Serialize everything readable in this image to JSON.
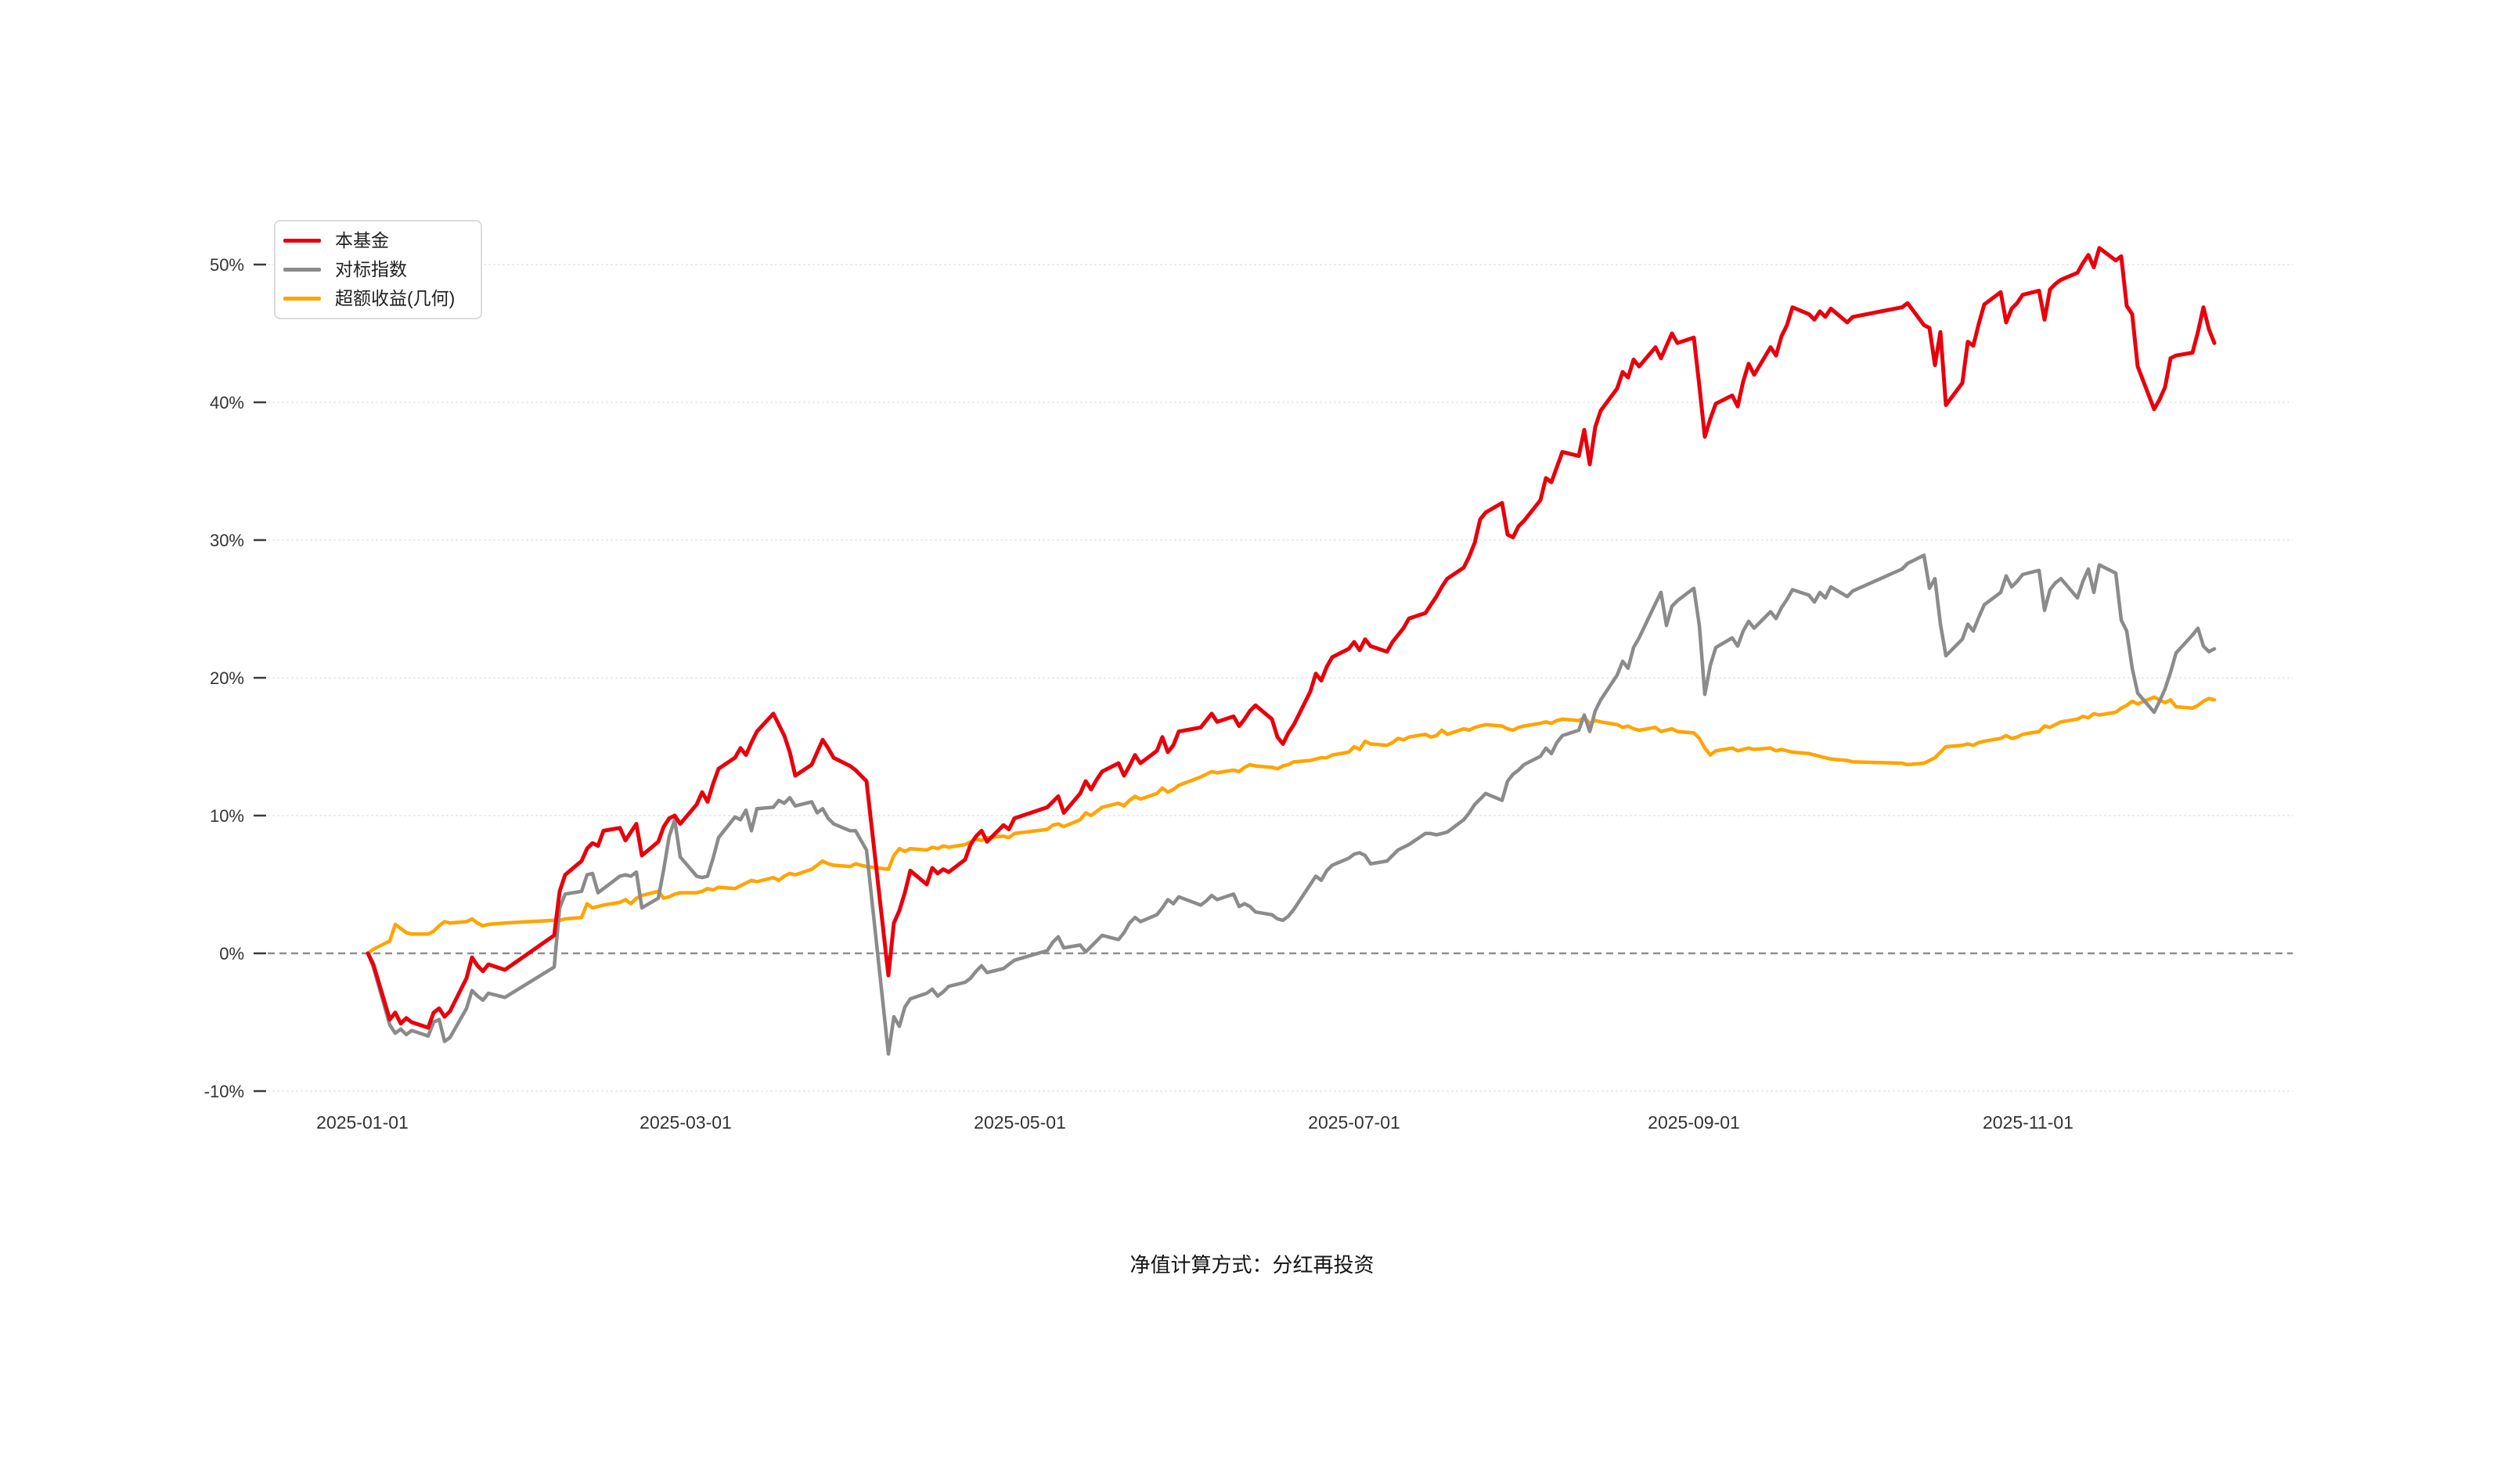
{
  "footer": {
    "note": "净值计算方式：分红再投资"
  },
  "legend": {
    "items": [
      {
        "label": "本基金",
        "color": "#e8000c"
      },
      {
        "label": "对标指数",
        "color": "#8b8b8b"
      },
      {
        "label": "超额收益(几何)",
        "color": "#ffa400"
      }
    ]
  },
  "chart_data": {
    "type": "line",
    "title": "",
    "grid": true,
    "legend_position": "top-left",
    "y_axis": {
      "ticks": [
        "50%",
        "40%",
        "30%",
        "20%",
        "10%",
        "0%",
        "-10%"
      ],
      "values": [
        50,
        40,
        30,
        20,
        10,
        0,
        -10
      ],
      "range": [
        -10,
        50
      ],
      "zero_line_dashed": true
    },
    "x_axis": {
      "ticks": [
        "2025-01-01",
        "2025-03-01",
        "2025-05-01",
        "2025-07-01",
        "2025-09-01",
        "2025-11-01"
      ]
    },
    "x": [
      "2025-01-02",
      "2025-01-03",
      "2025-01-06",
      "2025-01-07",
      "2025-01-08",
      "2025-01-09",
      "2025-01-10",
      "2025-01-13",
      "2025-01-14",
      "2025-01-15",
      "2025-01-16",
      "2025-01-17",
      "2025-01-20",
      "2025-01-21",
      "2025-01-22",
      "2025-01-23",
      "2025-01-24",
      "2025-01-27",
      "2025-02-05",
      "2025-02-06",
      "2025-02-07",
      "2025-02-10",
      "2025-02-11",
      "2025-02-12",
      "2025-02-13",
      "2025-02-14",
      "2025-02-17",
      "2025-02-18",
      "2025-02-19",
      "2025-02-20",
      "2025-02-21",
      "2025-02-24",
      "2025-02-25",
      "2025-02-26",
      "2025-02-27",
      "2025-02-28",
      "2025-03-03",
      "2025-03-04",
      "2025-03-05",
      "2025-03-06",
      "2025-03-07",
      "2025-03-10",
      "2025-03-11",
      "2025-03-12",
      "2025-03-13",
      "2025-03-14",
      "2025-03-17",
      "2025-03-18",
      "2025-03-19",
      "2025-03-20",
      "2025-03-21",
      "2025-03-24",
      "2025-03-25",
      "2025-03-26",
      "2025-03-27",
      "2025-03-28",
      "2025-03-31",
      "2025-04-01",
      "2025-04-02",
      "2025-04-03",
      "2025-04-07",
      "2025-04-08",
      "2025-04-09",
      "2025-04-10",
      "2025-04-11",
      "2025-04-14",
      "2025-04-15",
      "2025-04-16",
      "2025-04-17",
      "2025-04-18",
      "2025-04-21",
      "2025-04-22",
      "2025-04-23",
      "2025-04-24",
      "2025-04-25",
      "2025-04-28",
      "2025-04-29",
      "2025-04-30",
      "2025-05-06",
      "2025-05-07",
      "2025-05-08",
      "2025-05-09",
      "2025-05-12",
      "2025-05-13",
      "2025-05-14",
      "2025-05-15",
      "2025-05-16",
      "2025-05-19",
      "2025-05-20",
      "2025-05-21",
      "2025-05-22",
      "2025-05-23",
      "2025-05-26",
      "2025-05-27",
      "2025-05-28",
      "2025-05-29",
      "2025-05-30",
      "2025-06-03",
      "2025-06-04",
      "2025-06-05",
      "2025-06-06",
      "2025-06-09",
      "2025-06-10",
      "2025-06-11",
      "2025-06-12",
      "2025-06-13",
      "2025-06-16",
      "2025-06-17",
      "2025-06-18",
      "2025-06-19",
      "2025-06-20",
      "2025-06-23",
      "2025-06-24",
      "2025-06-25",
      "2025-06-26",
      "2025-06-27",
      "2025-06-30",
      "2025-07-01",
      "2025-07-02",
      "2025-07-03",
      "2025-07-04",
      "2025-07-07",
      "2025-07-08",
      "2025-07-09",
      "2025-07-10",
      "2025-07-11",
      "2025-07-14",
      "2025-07-15",
      "2025-07-16",
      "2025-07-17",
      "2025-07-18",
      "2025-07-21",
      "2025-07-22",
      "2025-07-23",
      "2025-07-24",
      "2025-07-25",
      "2025-07-28",
      "2025-07-29",
      "2025-07-30",
      "2025-07-31",
      "2025-08-01",
      "2025-08-04",
      "2025-08-05",
      "2025-08-06",
      "2025-08-07",
      "2025-08-08",
      "2025-08-11",
      "2025-08-12",
      "2025-08-13",
      "2025-08-14",
      "2025-08-15",
      "2025-08-18",
      "2025-08-19",
      "2025-08-20",
      "2025-08-21",
      "2025-08-22",
      "2025-08-25",
      "2025-08-26",
      "2025-08-27",
      "2025-08-28",
      "2025-08-29",
      "2025-09-01",
      "2025-09-02",
      "2025-09-03",
      "2025-09-04",
      "2025-09-05",
      "2025-09-08",
      "2025-09-09",
      "2025-09-10",
      "2025-09-11",
      "2025-09-12",
      "2025-09-15",
      "2025-09-16",
      "2025-09-17",
      "2025-09-18",
      "2025-09-19",
      "2025-09-22",
      "2025-09-23",
      "2025-09-24",
      "2025-09-25",
      "2025-09-26",
      "2025-09-29",
      "2025-09-30",
      "2025-10-09",
      "2025-10-10",
      "2025-10-13",
      "2025-10-14",
      "2025-10-15",
      "2025-10-16",
      "2025-10-17",
      "2025-10-20",
      "2025-10-21",
      "2025-10-22",
      "2025-10-23",
      "2025-10-24",
      "2025-10-27",
      "2025-10-28",
      "2025-10-29",
      "2025-10-30",
      "2025-10-31",
      "2025-11-03",
      "2025-11-04",
      "2025-11-05",
      "2025-11-06",
      "2025-11-07",
      "2025-11-10",
      "2025-11-11",
      "2025-11-12",
      "2025-11-13",
      "2025-11-14",
      "2025-11-17",
      "2025-11-18",
      "2025-11-19",
      "2025-11-20",
      "2025-11-21",
      "2025-11-24",
      "2025-11-25",
      "2025-11-26",
      "2025-11-27",
      "2025-11-28",
      "2025-12-01",
      "2025-12-02",
      "2025-12-03",
      "2025-12-04",
      "2025-12-05"
    ],
    "series": [
      {
        "name": "本基金",
        "color": "#e8000c",
        "width": 5,
        "values": [
          0.0,
          -0.8,
          -4.8,
          -4.3,
          -5.1,
          -4.7,
          -5.0,
          -5.4,
          -4.3,
          -4.0,
          -4.6,
          -4.2,
          -1.8,
          -0.3,
          -0.9,
          -1.3,
          -0.8,
          -1.2,
          1.3,
          4.5,
          5.7,
          6.7,
          7.6,
          8.0,
          7.8,
          8.9,
          9.1,
          8.2,
          8.8,
          9.4,
          7.1,
          8.1,
          9.2,
          9.8,
          10.0,
          9.4,
          10.8,
          11.7,
          11.0,
          12.3,
          13.4,
          14.2,
          14.9,
          14.4,
          15.3,
          16.1,
          17.4,
          16.6,
          15.8,
          14.6,
          12.9,
          13.7,
          14.6,
          15.5,
          14.9,
          14.2,
          13.6,
          13.3,
          12.9,
          12.5,
          -1.6,
          2.2,
          3.1,
          4.4,
          6.0,
          5.0,
          6.2,
          5.8,
          6.1,
          5.9,
          6.8,
          7.9,
          8.5,
          8.9,
          8.1,
          9.3,
          9.0,
          9.8,
          10.6,
          11.0,
          11.4,
          10.2,
          11.6,
          12.5,
          11.9,
          12.6,
          13.2,
          13.8,
          12.9,
          13.6,
          14.4,
          13.8,
          14.7,
          15.7,
          14.6,
          15.1,
          16.1,
          16.4,
          16.9,
          17.4,
          16.8,
          17.2,
          16.5,
          17.0,
          17.6,
          18.0,
          17.0,
          15.7,
          15.2,
          16.0,
          16.6,
          19.0,
          20.3,
          19.8,
          20.8,
          21.5,
          22.1,
          22.6,
          22.0,
          22.8,
          22.3,
          21.9,
          22.6,
          23.1,
          23.6,
          24.3,
          24.7,
          25.3,
          25.9,
          26.6,
          27.2,
          28.0,
          28.8,
          29.8,
          31.5,
          32.0,
          32.7,
          30.4,
          30.2,
          31.0,
          31.4,
          32.9,
          34.5,
          34.2,
          35.3,
          36.4,
          36.1,
          38.0,
          35.5,
          38.2,
          39.4,
          41.0,
          42.2,
          41.8,
          43.1,
          42.6,
          44.0,
          43.2,
          44.1,
          45.0,
          44.3,
          44.7,
          41.2,
          37.5,
          38.8,
          39.9,
          40.5,
          39.7,
          41.5,
          42.8,
          42.0,
          44.0,
          43.4,
          44.8,
          45.6,
          46.9,
          46.4,
          46.0,
          46.6,
          46.2,
          46.8,
          45.8,
          46.2,
          46.9,
          47.2,
          45.6,
          45.4,
          42.7,
          45.1,
          39.8,
          41.4,
          44.4,
          44.1,
          45.7,
          47.1,
          48.0,
          45.8,
          46.8,
          47.2,
          47.8,
          48.1,
          46.0,
          48.2,
          48.6,
          48.9,
          49.4,
          50.1,
          50.7,
          49.8,
          51.2,
          50.3,
          50.6,
          47.0,
          46.4,
          42.6,
          39.5,
          40.2,
          41.1,
          43.2,
          43.4,
          43.6,
          45.1,
          46.9,
          45.3,
          44.3
        ]
      },
      {
        "name": "对标指数",
        "color": "#8b8b8b",
        "width": 4.5,
        "values": [
          0.0,
          -1.0,
          -5.2,
          -5.8,
          -5.5,
          -5.9,
          -5.6,
          -6.0,
          -5.0,
          -4.8,
          -6.4,
          -6.1,
          -4.0,
          -2.7,
          -3.1,
          -3.4,
          -2.9,
          -3.2,
          -1.0,
          3.3,
          4.3,
          4.5,
          5.7,
          5.8,
          4.4,
          4.7,
          5.6,
          5.7,
          5.6,
          5.9,
          3.3,
          4.0,
          6.1,
          8.5,
          9.7,
          7.0,
          5.6,
          5.5,
          5.6,
          6.9,
          8.4,
          9.9,
          9.7,
          10.4,
          8.9,
          10.5,
          10.6,
          11.1,
          10.9,
          11.3,
          10.7,
          11.0,
          10.2,
          10.5,
          9.8,
          9.4,
          8.9,
          8.9,
          8.2,
          7.5,
          -7.3,
          -4.6,
          -5.3,
          -3.9,
          -3.3,
          -2.9,
          -2.6,
          -3.1,
          -2.8,
          -2.4,
          -2.1,
          -1.8,
          -1.3,
          -0.9,
          -1.4,
          -1.1,
          -0.8,
          -0.5,
          0.2,
          0.8,
          1.2,
          0.4,
          0.6,
          0.1,
          0.5,
          0.9,
          1.3,
          1.0,
          1.5,
          2.2,
          2.6,
          2.3,
          2.8,
          3.3,
          3.9,
          3.6,
          4.1,
          3.5,
          3.8,
          4.2,
          3.9,
          4.3,
          3.4,
          3.6,
          3.4,
          3.0,
          2.8,
          2.5,
          2.4,
          2.7,
          3.2,
          5.0,
          5.6,
          5.3,
          6.0,
          6.4,
          6.9,
          7.2,
          7.3,
          7.1,
          6.5,
          6.7,
          7.1,
          7.5,
          7.7,
          7.9,
          8.7,
          8.7,
          8.6,
          8.7,
          8.8,
          9.7,
          10.2,
          10.8,
          11.2,
          11.6,
          11.1,
          12.5,
          13.0,
          13.3,
          13.7,
          14.3,
          14.9,
          14.5,
          15.3,
          15.8,
          16.2,
          17.3,
          16.1,
          17.6,
          18.4,
          20.2,
          21.2,
          20.7,
          22.2,
          22.9,
          25.4,
          26.2,
          23.8,
          25.2,
          25.6,
          26.5,
          23.8,
          18.8,
          20.9,
          22.2,
          22.9,
          22.3,
          23.4,
          24.1,
          23.6,
          24.8,
          24.3,
          25.1,
          25.7,
          26.4,
          26.0,
          25.5,
          26.2,
          25.8,
          26.6,
          25.9,
          26.3,
          27.9,
          28.3,
          28.9,
          26.5,
          27.2,
          23.9,
          21.6,
          22.8,
          23.9,
          23.4,
          24.4,
          25.3,
          26.2,
          27.4,
          26.6,
          27.0,
          27.5,
          27.8,
          24.9,
          26.4,
          26.9,
          27.2,
          25.8,
          27.0,
          27.9,
          26.2,
          28.2,
          27.6,
          24.2,
          23.4,
          20.7,
          18.9,
          17.5,
          18.3,
          19.2,
          20.4,
          21.8,
          23.1,
          23.6,
          22.3,
          21.9,
          22.1
        ]
      },
      {
        "name": "超额收益(几何)",
        "color": "#ffa400",
        "width": 4.5,
        "values": [
          0.0,
          0.3,
          0.9,
          2.1,
          1.8,
          1.5,
          1.4,
          1.4,
          1.6,
          2.0,
          2.3,
          2.2,
          2.3,
          2.5,
          2.2,
          2.0,
          2.1,
          2.2,
          2.4,
          2.4,
          2.5,
          2.6,
          3.6,
          3.3,
          3.4,
          3.5,
          3.7,
          3.9,
          3.6,
          4.0,
          4.2,
          4.5,
          4.0,
          4.1,
          4.3,
          4.4,
          4.4,
          4.5,
          4.7,
          4.6,
          4.8,
          4.7,
          4.9,
          5.1,
          5.3,
          5.2,
          5.5,
          5.3,
          5.6,
          5.8,
          5.7,
          6.1,
          6.4,
          6.7,
          6.5,
          6.4,
          6.3,
          6.5,
          6.4,
          6.3,
          6.1,
          7.1,
          7.6,
          7.4,
          7.6,
          7.5,
          7.7,
          7.6,
          7.8,
          7.7,
          7.9,
          8.1,
          8.3,
          8.2,
          8.4,
          8.5,
          8.4,
          8.7,
          9.0,
          9.3,
          9.4,
          9.2,
          9.7,
          10.2,
          10.0,
          10.3,
          10.6,
          10.9,
          10.7,
          11.1,
          11.4,
          11.2,
          11.6,
          12.0,
          11.7,
          11.9,
          12.2,
          12.8,
          13.0,
          13.2,
          13.1,
          13.3,
          13.2,
          13.5,
          13.7,
          13.6,
          13.5,
          13.4,
          13.6,
          13.7,
          13.9,
          14.0,
          14.1,
          14.2,
          14.2,
          14.4,
          14.6,
          15.0,
          14.8,
          15.4,
          15.2,
          15.1,
          15.3,
          15.6,
          15.5,
          15.7,
          15.9,
          15.7,
          15.8,
          16.2,
          15.9,
          16.3,
          16.2,
          16.4,
          16.5,
          16.6,
          16.5,
          16.3,
          16.2,
          16.4,
          16.5,
          16.7,
          16.8,
          16.7,
          16.9,
          17.0,
          16.9,
          17.1,
          16.7,
          16.9,
          16.8,
          16.6,
          16.4,
          16.5,
          16.3,
          16.2,
          16.4,
          16.1,
          16.2,
          16.3,
          16.1,
          16.0,
          15.6,
          14.9,
          14.4,
          14.7,
          14.9,
          14.7,
          14.8,
          14.9,
          14.8,
          14.9,
          14.7,
          14.8,
          14.7,
          14.6,
          14.5,
          14.4,
          14.3,
          14.2,
          14.1,
          14.0,
          13.9,
          13.8,
          13.7,
          13.8,
          14.0,
          14.2,
          14.6,
          15.0,
          15.1,
          15.2,
          15.1,
          15.3,
          15.4,
          15.6,
          15.8,
          15.6,
          15.7,
          15.9,
          16.1,
          16.5,
          16.4,
          16.6,
          16.8,
          17.0,
          17.2,
          17.1,
          17.4,
          17.3,
          17.5,
          17.8,
          18.0,
          18.3,
          18.1,
          18.6,
          18.4,
          18.2,
          18.4,
          17.9,
          17.8,
          18.0,
          18.3,
          18.5,
          18.4
        ]
      }
    ]
  }
}
